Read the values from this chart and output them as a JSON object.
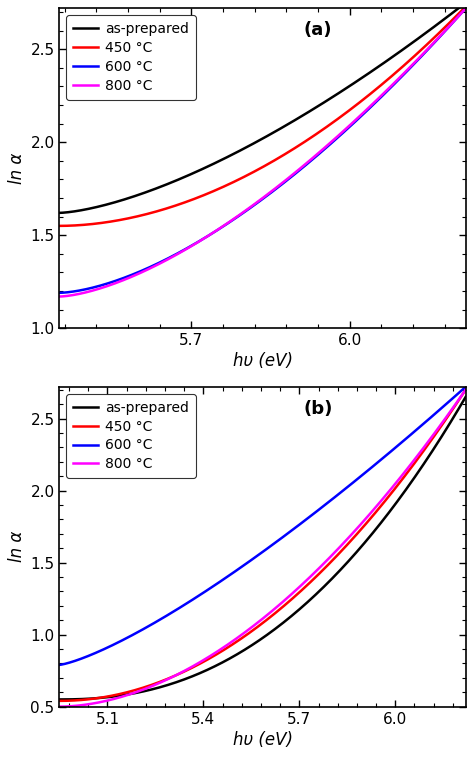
{
  "panel_a": {
    "label": "(a)",
    "xlabel": "hυ (eV)",
    "ylabel": "ln α",
    "xlim": [
      5.45,
      6.22
    ],
    "ylim": [
      1.0,
      2.72
    ],
    "xticks": [
      5.7,
      6.0
    ],
    "yticks": [
      1.0,
      1.5,
      2.0,
      2.5
    ],
    "legend_labels": [
      "as-prepared",
      "450 °C",
      "600 °C",
      "800 °C"
    ],
    "legend_colors": [
      "#000000",
      "#ff0000",
      "#0000ff",
      "#ff00ff"
    ]
  },
  "panel_b": {
    "label": "(b)",
    "xlabel": "hυ (eV)",
    "ylabel": "ln α",
    "xlim": [
      4.95,
      6.22
    ],
    "ylim": [
      0.5,
      2.72
    ],
    "xticks": [
      5.1,
      5.4,
      5.7,
      6.0
    ],
    "yticks": [
      0.5,
      1.0,
      1.5,
      2.0,
      2.5
    ],
    "legend_labels": [
      "as-prepared",
      "450 °C",
      "600 °C",
      "800 °C"
    ],
    "legend_colors": [
      "#000000",
      "#ff0000",
      "#0000ff",
      "#ff00ff"
    ]
  }
}
